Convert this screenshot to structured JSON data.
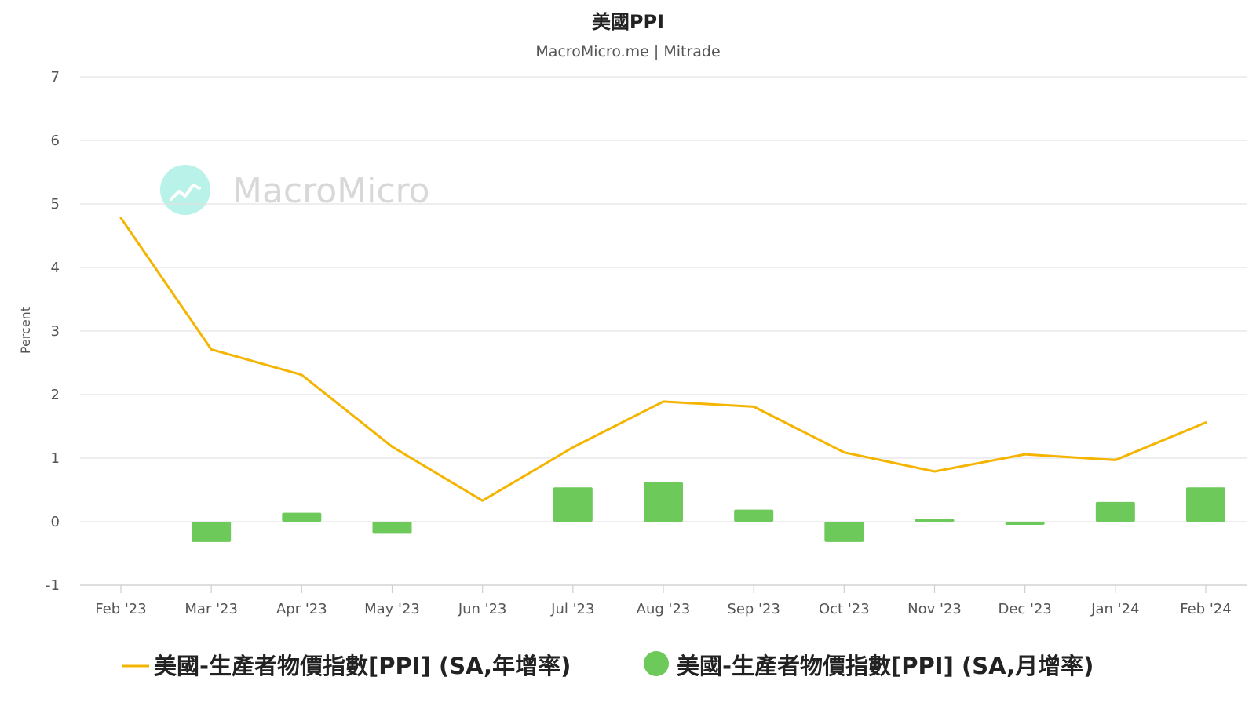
{
  "chart_data": {
    "type": "bar",
    "title": "美國PPI",
    "subtitle": "MacroMicro.me | Mitrade",
    "watermark": "MacroMicro",
    "ylabel": "Percent",
    "ylim": [
      -1,
      7
    ],
    "yticks": [
      "-1",
      "0",
      "1",
      "2",
      "3",
      "4",
      "5",
      "6",
      "7"
    ],
    "categories": [
      "Feb '23",
      "Mar '23",
      "Apr '23",
      "May '23",
      "Jun '23",
      "Jul '23",
      "Aug '23",
      "Sep '23",
      "Oct '23",
      "Nov '23",
      "Dec '23",
      "Jan '24",
      "Feb '24"
    ],
    "grid": true,
    "legend_position": "bottom",
    "series": [
      {
        "name": "美國-生產者物價指數[PPI] (SA,年增率)",
        "type": "line",
        "color": "#f4b400",
        "values": [
          4.78,
          2.71,
          2.31,
          1.18,
          0.33,
          1.17,
          1.89,
          1.81,
          1.09,
          0.79,
          1.06,
          0.97,
          1.56
        ]
      },
      {
        "name": "美國-生產者物價指數[PPI] (SA,月增率)",
        "type": "bar",
        "color": "#6cc95a",
        "values": [
          0.0,
          -0.32,
          0.14,
          -0.19,
          0.0,
          0.54,
          0.62,
          0.19,
          -0.32,
          0.04,
          -0.05,
          0.31,
          0.54
        ]
      }
    ]
  }
}
